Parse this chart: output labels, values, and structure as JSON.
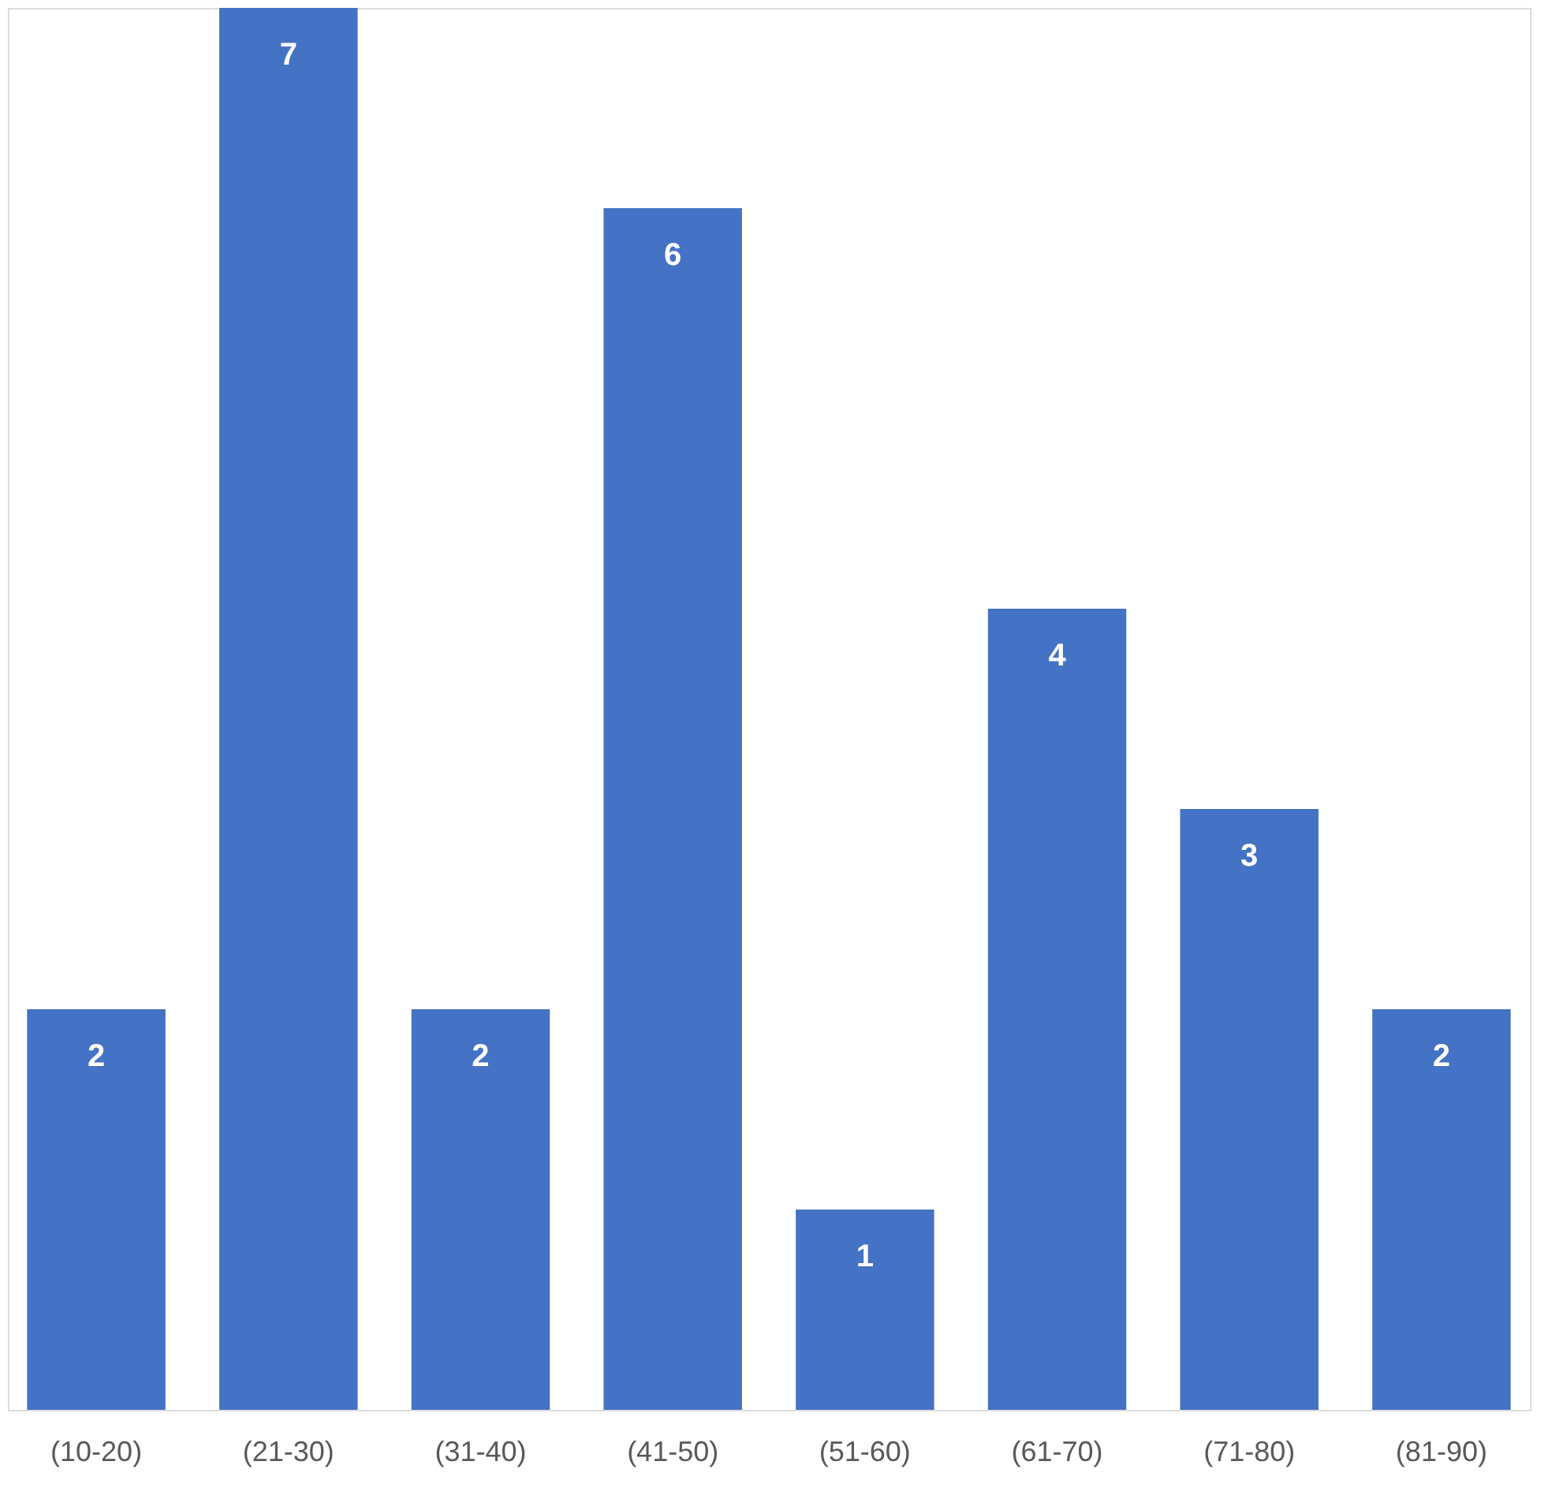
{
  "chart_data": {
    "type": "bar",
    "categories": [
      "(10-20)",
      "(21-30)",
      "(31-40)",
      "(41-50)",
      "(51-60)",
      "(61-70)",
      "(71-80)",
      "(81-90)"
    ],
    "values": [
      2,
      7,
      2,
      6,
      1,
      4,
      3,
      2
    ],
    "color": "#4472c4",
    "data_labels": true,
    "grid": false
  }
}
